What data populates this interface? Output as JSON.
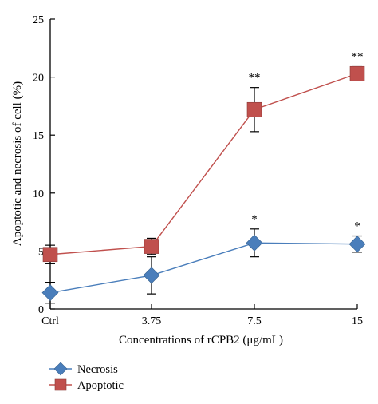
{
  "chart_data": {
    "type": "line",
    "xlabel": "Concentrations of rCPB2 (μg/mL)",
    "ylabel": "Apoptotic and necrosis of cell (%)",
    "categories": [
      "Ctrl",
      "3.75",
      "7.5",
      "15"
    ],
    "ylim": [
      0,
      25
    ],
    "yticks": [
      0,
      5,
      10,
      15,
      20,
      25
    ],
    "grid": false,
    "legend_position": "bottom-left",
    "series": [
      {
        "name": "Necrosis",
        "marker": "diamond",
        "color": "#4a7ebb",
        "values": [
          1.4,
          2.9,
          5.7,
          5.6
        ],
        "errors": [
          0.9,
          1.6,
          1.2,
          0.7
        ],
        "significance": [
          "",
          "",
          "*",
          "*"
        ]
      },
      {
        "name": "Apoptotic",
        "marker": "square",
        "color": "#c0504d",
        "values": [
          4.7,
          5.4,
          17.2,
          20.3
        ],
        "errors": [
          0.8,
          0.7,
          1.9,
          0.6
        ],
        "significance": [
          "",
          "",
          "**",
          "**"
        ]
      }
    ]
  }
}
